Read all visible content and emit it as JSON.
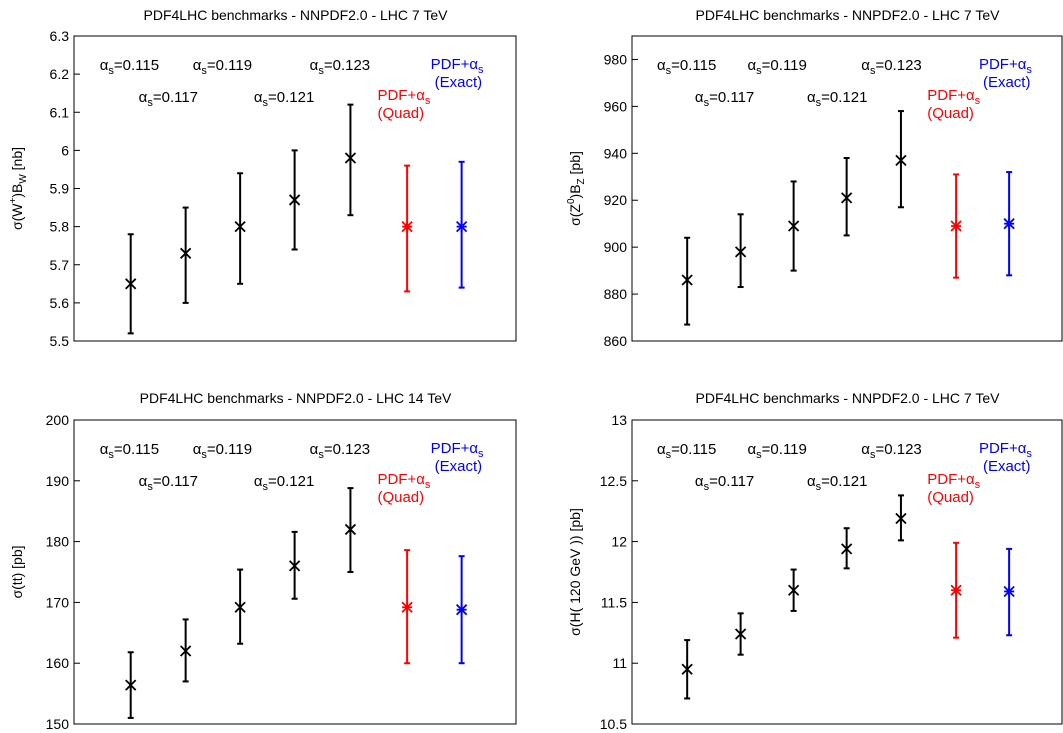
{
  "colors": {
    "black": "#000000",
    "red": "#ff0000",
    "blue": "#0000ff"
  },
  "chart_data": [
    {
      "type": "scatter",
      "title": "PDF4LHC benchmarks - NNPDF2.0 - LHC 7 TeV",
      "ylabel": {
        "base": "σ(W",
        "sup": "+",
        "mid": ")B",
        "sub": "W",
        "tail": " [nb]"
      },
      "ylim": [
        5.5,
        6.3
      ],
      "yticks": [
        5.5,
        5.6,
        5.7,
        5.8,
        5.9,
        6,
        6.1,
        6.2,
        6.3
      ],
      "grid": false,
      "labels_row1": [
        "αs=0.115",
        "αs=0.119",
        "αs=0.123"
      ],
      "labels_row2": [
        "αs=0.117",
        "αs=0.121"
      ],
      "pdf_quad": [
        "PDF+αs",
        "(Quad)"
      ],
      "pdf_exact": [
        "PDF+αs",
        "(Exact)"
      ],
      "points": [
        {
          "label": "αs=0.115",
          "center": 5.65,
          "low": 5.52,
          "high": 5.78,
          "color": "#000000"
        },
        {
          "label": "αs=0.117",
          "center": 5.73,
          "low": 5.6,
          "high": 5.85,
          "color": "#000000"
        },
        {
          "label": "αs=0.119",
          "center": 5.8,
          "low": 5.65,
          "high": 5.94,
          "color": "#000000"
        },
        {
          "label": "αs=0.121",
          "center": 5.87,
          "low": 5.74,
          "high": 6.0,
          "color": "#000000"
        },
        {
          "label": "αs=0.123",
          "center": 5.98,
          "low": 5.83,
          "high": 6.12,
          "color": "#000000"
        },
        {
          "label": "PDF+αs (Quad)",
          "center": 5.8,
          "low": 5.63,
          "high": 5.96,
          "color": "#ff0000"
        },
        {
          "label": "PDF+αs (Exact)",
          "center": 5.8,
          "low": 5.64,
          "high": 5.97,
          "color": "#0000ff"
        }
      ]
    },
    {
      "type": "scatter",
      "title": "PDF4LHC benchmarks - NNPDF2.0 - LHC 7 TeV",
      "ylabel": {
        "base": "σ(Z",
        "sup": "0",
        "mid": ")B",
        "sub": "Z",
        "tail": " [pb]"
      },
      "ylim": [
        860,
        990
      ],
      "yticks": [
        860,
        880,
        900,
        920,
        940,
        960,
        980
      ],
      "grid": false,
      "labels_row1": [
        "αs=0.115",
        "αs=0.119",
        "αs=0.123"
      ],
      "labels_row2": [
        "αs=0.117",
        "αs=0.121"
      ],
      "pdf_quad": [
        "PDF+αs",
        "(Quad)"
      ],
      "pdf_exact": [
        "PDF+αs",
        "(Exact)"
      ],
      "points": [
        {
          "label": "αs=0.115",
          "center": 886,
          "low": 867,
          "high": 904,
          "color": "#000000"
        },
        {
          "label": "αs=0.117",
          "center": 898,
          "low": 883,
          "high": 914,
          "color": "#000000"
        },
        {
          "label": "αs=0.119",
          "center": 909,
          "low": 890,
          "high": 928,
          "color": "#000000"
        },
        {
          "label": "αs=0.121",
          "center": 921,
          "low": 905,
          "high": 938,
          "color": "#000000"
        },
        {
          "label": "αs=0.123",
          "center": 937,
          "low": 917,
          "high": 958,
          "color": "#000000"
        },
        {
          "label": "PDF+αs (Quad)",
          "center": 909,
          "low": 887,
          "high": 931,
          "color": "#ff0000"
        },
        {
          "label": "PDF+αs (Exact)",
          "center": 910,
          "low": 888,
          "high": 932,
          "color": "#0000ff"
        }
      ]
    },
    {
      "type": "scatter",
      "title": "PDF4LHC benchmarks - NNPDF2.0 - LHC 14 TeV",
      "ylabel": {
        "base": "σ(tt)",
        "sup": "",
        "mid": "",
        "sub": "",
        "tail": " [pb]"
      },
      "ylim": [
        150,
        200
      ],
      "yticks": [
        150,
        160,
        170,
        180,
        190,
        200
      ],
      "grid": false,
      "labels_row1": [
        "αs=0.115",
        "αs=0.119",
        "αs=0.123"
      ],
      "labels_row2": [
        "αs=0.117",
        "αs=0.121"
      ],
      "pdf_quad": [
        "PDF+αs",
        "(Quad)"
      ],
      "pdf_exact": [
        "PDF+αs",
        "(Exact)"
      ],
      "points": [
        {
          "label": "αs=0.115",
          "center": 156.4,
          "low": 151.0,
          "high": 161.8,
          "color": "#000000"
        },
        {
          "label": "αs=0.117",
          "center": 162.0,
          "low": 157.0,
          "high": 167.2,
          "color": "#000000"
        },
        {
          "label": "αs=0.119",
          "center": 169.2,
          "low": 163.2,
          "high": 175.4,
          "color": "#000000"
        },
        {
          "label": "αs=0.121",
          "center": 176.0,
          "low": 170.6,
          "high": 181.6,
          "color": "#000000"
        },
        {
          "label": "αs=0.123",
          "center": 182.0,
          "low": 175.0,
          "high": 188.8,
          "color": "#000000"
        },
        {
          "label": "PDF+αs (Quad)",
          "center": 169.2,
          "low": 160.0,
          "high": 178.6,
          "color": "#ff0000"
        },
        {
          "label": "PDF+αs (Exact)",
          "center": 168.8,
          "low": 160.0,
          "high": 177.6,
          "color": "#0000ff"
        }
      ]
    },
    {
      "type": "scatter",
      "title": "PDF4LHC benchmarks - NNPDF2.0 - LHC 7 TeV",
      "ylabel": {
        "base": "σ(H( 120 GeV )) [pb]",
        "sup": "",
        "mid": "",
        "sub": "",
        "tail": ""
      },
      "ylim": [
        10.5,
        13
      ],
      "yticks": [
        10.5,
        11,
        11.5,
        12,
        12.5,
        13
      ],
      "grid": false,
      "labels_row1": [
        "αs=0.115",
        "αs=0.119",
        "αs=0.123"
      ],
      "labels_row2": [
        "αs=0.117",
        "αs=0.121"
      ],
      "pdf_quad": [
        "PDF+αs",
        "(Quad)"
      ],
      "pdf_exact": [
        "PDF+αs",
        "(Exact)"
      ],
      "points": [
        {
          "label": "αs=0.115",
          "center": 10.95,
          "low": 10.71,
          "high": 11.19,
          "color": "#000000"
        },
        {
          "label": "αs=0.117",
          "center": 11.24,
          "low": 11.07,
          "high": 11.41,
          "color": "#000000"
        },
        {
          "label": "αs=0.119",
          "center": 11.6,
          "low": 11.43,
          "high": 11.77,
          "color": "#000000"
        },
        {
          "label": "αs=0.121",
          "center": 11.94,
          "low": 11.78,
          "high": 12.11,
          "color": "#000000"
        },
        {
          "label": "αs=0.123",
          "center": 12.19,
          "low": 12.01,
          "high": 12.38,
          "color": "#000000"
        },
        {
          "label": "PDF+αs (Quad)",
          "center": 11.6,
          "low": 11.21,
          "high": 11.99,
          "color": "#ff0000"
        },
        {
          "label": "PDF+αs (Exact)",
          "center": 11.59,
          "low": 11.23,
          "high": 11.94,
          "color": "#0000ff"
        }
      ]
    }
  ]
}
